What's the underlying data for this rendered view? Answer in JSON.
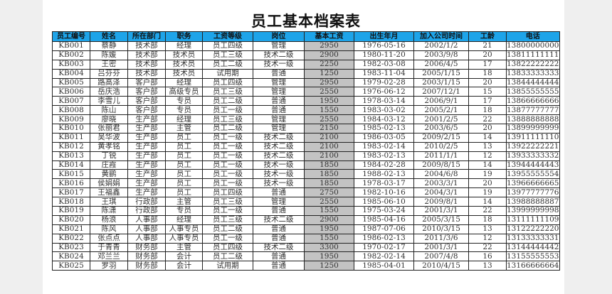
{
  "title": "员工基本档案表",
  "colors": {
    "header_bg": "#1ea4e9",
    "salary_bg": "#c3c3c3"
  },
  "columns": [
    "员工编号",
    "姓名",
    "所在部门",
    "职务",
    "工资等级",
    "岗位",
    "基本工资",
    "出生年月",
    "加入公司时间",
    "工龄",
    "电话"
  ],
  "rows": [
    [
      "KB001",
      "蔡静",
      "技术部",
      "经理",
      "员工四级",
      "管理",
      "2950",
      "1976-05-16",
      "2002/1/2",
      "21",
      "13800000000"
    ],
    [
      "KB002",
      "陈媛",
      "技术部",
      "技术员",
      "员工三级",
      "技术二级",
      "2900",
      "1980-11-20",
      "2003/9/8",
      "20",
      "13811111111"
    ],
    [
      "KB003",
      "王密",
      "技术部",
      "技术员",
      "员工二级",
      "技术一级",
      "2250",
      "1982-03-08",
      "2006/4/5",
      "17",
      "13822222222"
    ],
    [
      "KB004",
      "吕芬芬",
      "技术部",
      "技术员",
      "试用期",
      "普通",
      "1250",
      "1983-11-04",
      "2005/1/15",
      "18",
      "13833333333"
    ],
    [
      "KB005",
      "路高泽",
      "客户部",
      "经理",
      "员工四级",
      "管理",
      "2950",
      "1979-02-28",
      "2003/1/15",
      "20",
      "13844444444"
    ],
    [
      "KB006",
      "岳庆浩",
      "客户部",
      "高级专员",
      "员工三级",
      "管理",
      "2550",
      "1976-06-12",
      "2007/12/1",
      "15",
      "13855555555"
    ],
    [
      "KB007",
      "李雪儿",
      "客户部",
      "专员",
      "员工二级",
      "普通",
      "1950",
      "1978-03-14",
      "2006/9/1",
      "17",
      "13866666666"
    ],
    [
      "KB008",
      "陈山",
      "客户部",
      "专员",
      "员工一级",
      "普通",
      "1550",
      "1983-03-02",
      "2005/2/1",
      "18",
      "13877777777"
    ],
    [
      "KB009",
      "廖晓",
      "生产部",
      "经理",
      "员工三级",
      "管理",
      "2550",
      "1984-03-12",
      "2001/2/5",
      "22",
      "13888888888"
    ],
    [
      "KB010",
      "张丽君",
      "生产部",
      "主管",
      "员工二级",
      "管理",
      "2150",
      "1985-02-13",
      "2003/6/5",
      "20",
      "13899999999"
    ],
    [
      "KB011",
      "吴华波",
      "生产部",
      "员工",
      "员工一级",
      "技术二级",
      "2100",
      "1986-03-05",
      "2009/2/15",
      "14",
      "13911111110"
    ],
    [
      "KB012",
      "黄孝铭",
      "生产部",
      "员工",
      "员工一级",
      "技术二级",
      "2100",
      "1983-02-14",
      "2010/2/5",
      "13",
      "13922222221"
    ],
    [
      "KB013",
      "丁锐",
      "生产部",
      "员工",
      "员工一级",
      "技术二级",
      "2100",
      "1983-02-13",
      "2011/1/1",
      "12",
      "13933333332"
    ],
    [
      "KB014",
      "庄霞",
      "生产部",
      "员工",
      "员工一级",
      "技术一级",
      "1850",
      "1984-02-28",
      "2009/8/15",
      "14",
      "13944444443"
    ],
    [
      "KB015",
      "黄鹂",
      "生产部",
      "员工",
      "员工一级",
      "技术一级",
      "1850",
      "1988-02-13",
      "2004/6/8",
      "19",
      "13955555554"
    ],
    [
      "KB016",
      "侯娟娟",
      "生产部",
      "员工",
      "员工一级",
      "技术一级",
      "1850",
      "1978-03-17",
      "2003/3/1",
      "20",
      "13966666665"
    ],
    [
      "KB017",
      "王福鑫",
      "生产部",
      "员工",
      "员工四级",
      "普通",
      "2750",
      "1982-10-16",
      "2004/3/1",
      "19",
      "13977777776"
    ],
    [
      "KB018",
      "王琪",
      "行政部",
      "主管",
      "员工三级",
      "管理",
      "2550",
      "1985-06-10",
      "2009/8/1",
      "14",
      "13988888887"
    ],
    [
      "KB019",
      "陈潇",
      "行政部",
      "专员",
      "员工一级",
      "普通",
      "1550",
      "1975-03-24",
      "2001/3/1",
      "22",
      "13999999998"
    ],
    [
      "KB020",
      "杨浪",
      "人事部",
      "经理",
      "员工三级",
      "技术二级",
      "2900",
      "1985-04-16",
      "2005/3/15",
      "18",
      "13111111109"
    ],
    [
      "KB021",
      "陈风",
      "人事部",
      "人事专员",
      "员工二级",
      "普通",
      "1950",
      "1987-07-06",
      "2010/3/15",
      "13",
      "13122222220"
    ],
    [
      "KB022",
      "张点点",
      "人事部",
      "人事专员",
      "员工一级",
      "普通",
      "1550",
      "1986-02-13",
      "2011/3/6",
      "12",
      "13133333331"
    ],
    [
      "KB023",
      "于青青",
      "财务部",
      "主管",
      "员工四级",
      "技术二级",
      "3300",
      "1970-02-17",
      "2001/3/1",
      "22",
      "13144444442"
    ],
    [
      "KB024",
      "邓兰兰",
      "财务部",
      "会计",
      "员工二级",
      "普通",
      "1950",
      "1982-02-14",
      "2007/4/8",
      "16",
      "13155555553"
    ],
    [
      "KB025",
      "罗羽",
      "财务部",
      "会计",
      "试用期",
      "普通",
      "1250",
      "1985-04-01",
      "2010/4/15",
      "13",
      "13166666664"
    ]
  ]
}
